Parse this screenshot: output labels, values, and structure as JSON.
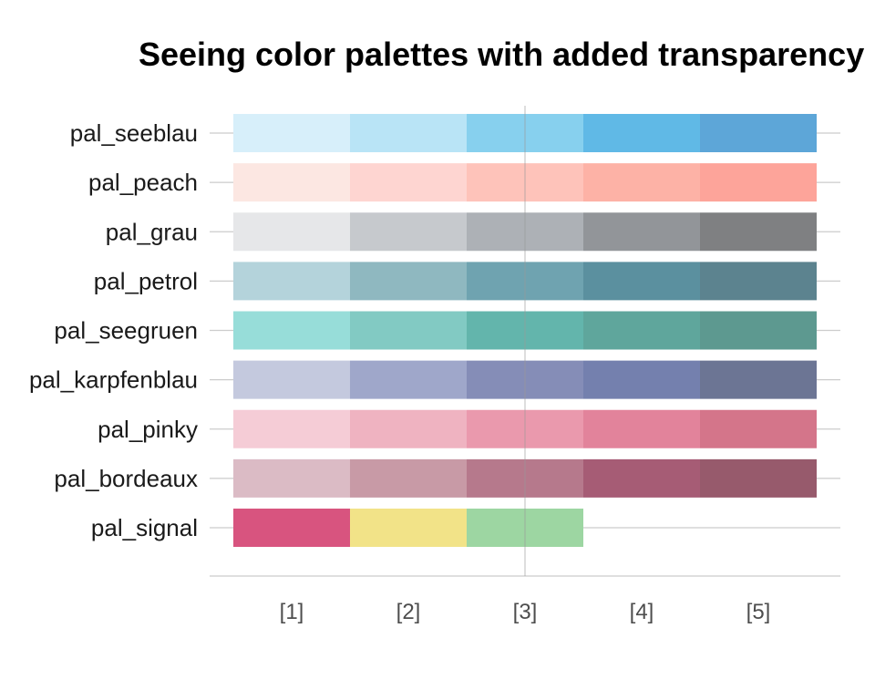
{
  "chart_data": {
    "type": "heatmap",
    "title": "Seeing color palettes with added transparency",
    "x_tick_labels": [
      "[1]",
      "[2]",
      "[3]",
      "[4]",
      "[5]"
    ],
    "grid": true,
    "legend": "none",
    "palettes": [
      {
        "name": "pal_seeblau",
        "colors": [
          "#D7EFFA",
          "#B9E4F6",
          "#87D0EE",
          "#60B9E6",
          "#5DA6D8"
        ]
      },
      {
        "name": "pal_peach",
        "colors": [
          "#FCE7E2",
          "#FED5D1",
          "#FEC3BA",
          "#FDB2A6",
          "#FDA49A"
        ]
      },
      {
        "name": "pal_grau",
        "colors": [
          "#E6E7E9",
          "#C6C9CD",
          "#ADB1B6",
          "#929599",
          "#7F8082"
        ]
      },
      {
        "name": "pal_petrol",
        "colors": [
          "#B4D3DB",
          "#8FB8C0",
          "#6FA3B0",
          "#5B909F",
          "#5C838F"
        ]
      },
      {
        "name": "pal_seegruen",
        "colors": [
          "#97DDD9",
          "#82CAC3",
          "#63B5AC",
          "#5FA69C",
          "#5D9990"
        ]
      },
      {
        "name": "pal_karpfenblau",
        "colors": [
          "#C4C9DE",
          "#9FA7CA",
          "#858DB7",
          "#7480AE",
          "#6C7594"
        ]
      },
      {
        "name": "pal_pinky",
        "colors": [
          "#F5CCD6",
          "#EFB3C1",
          "#EA99AD",
          "#E2839B",
          "#D4758A"
        ]
      },
      {
        "name": "pal_bordeaux",
        "colors": [
          "#DBBBC5",
          "#C89AA6",
          "#B6798C",
          "#A65C75",
          "#975A6C"
        ]
      },
      {
        "name": "pal_signal",
        "colors": [
          "#D8547F",
          "#F2E388",
          "#9DD6A2"
        ]
      }
    ]
  }
}
